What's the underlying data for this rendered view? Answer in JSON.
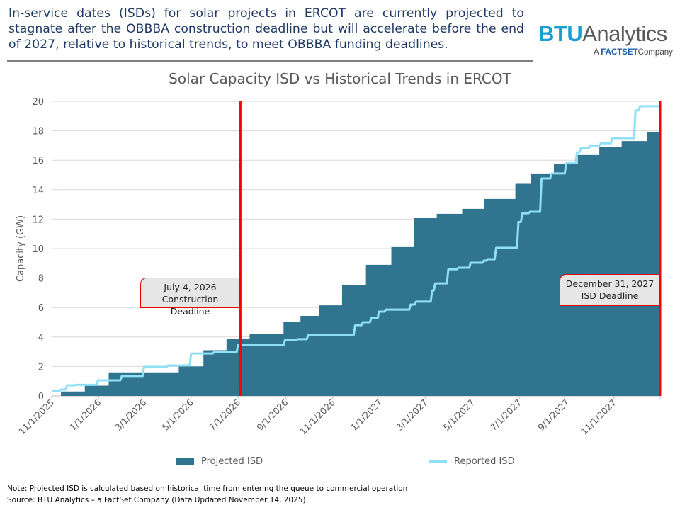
{
  "headline": "In-service dates (ISDs) for solar projects in ERCOT are currently projected to stagnate after the OBBBA construction deadline but will accelerate before the end of 2027, relative to historical trends, to meet OBBBA funding deadlines.",
  "logo": {
    "brand": "BTU",
    "brand2": "Analytics",
    "tagline_a": "A",
    "tagline_factset": "FACTSET",
    "tagline_company": "Company"
  },
  "colors": {
    "projected": "#31748f",
    "reported": "#8fe0f6",
    "deadline": "#ff0000",
    "grid": "#d9d9d9"
  },
  "chart_data": {
    "type": "area+line",
    "title": "Solar Capacity ISD vs Historical Trends in ERCOT",
    "xlabel": "",
    "ylabel": "Capacity (GW)",
    "xlim": [
      "2025-11-01",
      "2027-12-31"
    ],
    "ylim": [
      0,
      20
    ],
    "yticks": [
      0,
      2,
      4,
      6,
      8,
      10,
      12,
      14,
      16,
      18,
      20
    ],
    "xtick_labels": [
      "11/1/2025",
      "1/1/2026",
      "3/1/2026",
      "5/1/2026",
      "7/1/2026",
      "9/1/2026",
      "11/1/2026",
      "1/1/2027",
      "3/1/2027",
      "5/1/2027",
      "7/1/2027",
      "9/1/2027",
      "11/1/2027"
    ],
    "grid": "horizontal",
    "legend_position": "bottom",
    "series": [
      {
        "name": "Projected ISD",
        "type": "step-area",
        "points": [
          [
            "2025-11-13",
            0.3
          ],
          [
            "2025-12-14",
            0.7
          ],
          [
            "2026-01-14",
            1.6
          ],
          [
            "2026-04-15",
            2.0
          ],
          [
            "2026-05-17",
            3.1
          ],
          [
            "2026-06-16",
            3.85
          ],
          [
            "2026-07-16",
            4.2
          ],
          [
            "2026-08-29",
            5.0
          ],
          [
            "2026-09-20",
            5.43
          ],
          [
            "2026-10-14",
            6.15
          ],
          [
            "2026-11-13",
            7.5
          ],
          [
            "2026-12-14",
            8.9
          ],
          [
            "2027-01-16",
            10.1
          ],
          [
            "2027-02-14",
            12.07
          ],
          [
            "2027-03-16",
            12.36
          ],
          [
            "2027-04-18",
            12.7
          ],
          [
            "2027-05-16",
            13.37
          ],
          [
            "2027-06-26",
            14.4
          ],
          [
            "2027-07-16",
            15.1
          ],
          [
            "2027-08-15",
            15.77
          ],
          [
            "2027-09-15",
            16.35
          ],
          [
            "2027-10-13",
            16.92
          ],
          [
            "2027-11-11",
            17.3
          ],
          [
            "2027-12-14",
            17.93
          ]
        ]
      },
      {
        "name": "Reported ISD",
        "type": "step-line",
        "points": [
          [
            "2025-11-01",
            0.34
          ],
          [
            "2025-11-13",
            0.43
          ],
          [
            "2025-11-21",
            0.72
          ],
          [
            "2025-12-02",
            0.75
          ],
          [
            "2025-12-31",
            1.06
          ],
          [
            "2026-01-31",
            1.35
          ],
          [
            "2026-03-01",
            1.97
          ],
          [
            "2026-04-01",
            2.07
          ],
          [
            "2026-05-01",
            2.88
          ],
          [
            "2026-05-31",
            2.98
          ],
          [
            "2026-07-01",
            3.46
          ],
          [
            "2026-08-31",
            3.8
          ],
          [
            "2026-09-16",
            3.85
          ],
          [
            "2026-09-30",
            4.13
          ],
          [
            "2026-11-30",
            4.8
          ],
          [
            "2026-12-10",
            5.0
          ],
          [
            "2026-12-21",
            5.28
          ],
          [
            "2026-12-31",
            5.72
          ],
          [
            "2027-01-09",
            5.86
          ],
          [
            "2027-02-10",
            6.2
          ],
          [
            "2027-02-17",
            6.4
          ],
          [
            "2027-03-10",
            7.16
          ],
          [
            "2027-03-14",
            7.64
          ],
          [
            "2027-03-31",
            8.6
          ],
          [
            "2027-04-13",
            8.7
          ],
          [
            "2027-04-29",
            9.04
          ],
          [
            "2027-05-16",
            9.18
          ],
          [
            "2027-05-21",
            9.28
          ],
          [
            "2027-06-01",
            10.05
          ],
          [
            "2027-06-30",
            11.8
          ],
          [
            "2027-07-05",
            12.4
          ],
          [
            "2027-07-15",
            12.5
          ],
          [
            "2027-07-30",
            14.76
          ],
          [
            "2027-08-12",
            15.1
          ],
          [
            "2027-08-31",
            15.8
          ],
          [
            "2027-09-14",
            16.54
          ],
          [
            "2027-09-19",
            16.8
          ],
          [
            "2027-10-01",
            17.0
          ],
          [
            "2027-10-15",
            17.15
          ],
          [
            "2027-10-30",
            17.5
          ],
          [
            "2027-11-29",
            19.38
          ],
          [
            "2027-12-05",
            19.67
          ]
        ]
      }
    ],
    "annotations": [
      {
        "date": "2026-07-04",
        "line1": "July 4, 2026",
        "line2": "Construction Deadline"
      },
      {
        "date": "2027-12-31",
        "line1": "December 31, 2027",
        "line2": "ISD Deadline"
      }
    ]
  },
  "notes": {
    "note": "Note: Projected ISD is calculated based on historical time from entering the queue to commercial operation",
    "source": "Source: BTU Analytics – a FactSet Company (Data Updated November 14, 2025)"
  }
}
